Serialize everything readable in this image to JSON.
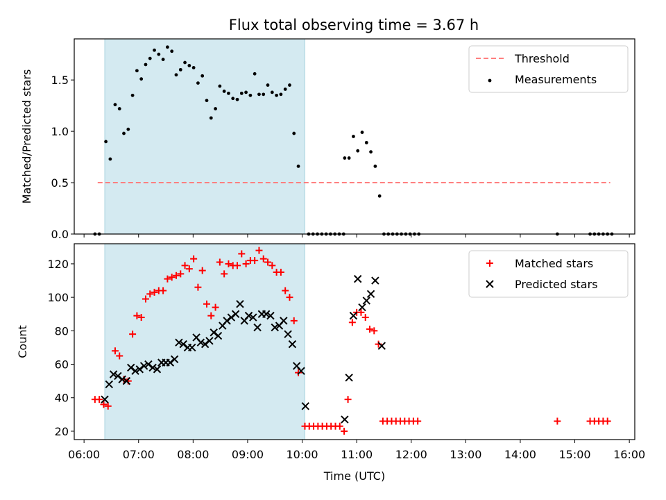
{
  "figure": {
    "title": "Flux total observing time = 3.67 h"
  },
  "chart_data": [
    {
      "type": "scatter",
      "panel": "top",
      "ylabel": "Matched/Predicted stars",
      "ylim": [
        0,
        1.9
      ],
      "yticks": [
        0.0,
        0.5,
        1.0,
        1.5
      ],
      "ytick_labels": [
        "0.0",
        "0.5",
        "1.0",
        "1.5"
      ],
      "xlim": [
        5.82,
        16.1
      ],
      "grid": false,
      "legend_position": "top-right",
      "shaded_interval": {
        "start": 6.38,
        "end": 10.05,
        "color": "#d4eaf1"
      },
      "threshold": {
        "name": "Threshold",
        "value": 0.5,
        "x_start": 6.25,
        "x_end": 15.65,
        "color": "#ff7f7f",
        "style": "dashed"
      },
      "series": [
        {
          "name": "Measurements",
          "marker": "dot",
          "color": "#000000",
          "points": [
            [
              6.2,
              0.0
            ],
            [
              6.28,
              0.0
            ],
            [
              6.4,
              0.9
            ],
            [
              6.48,
              0.73
            ],
            [
              6.57,
              1.26
            ],
            [
              6.65,
              1.22
            ],
            [
              6.73,
              0.98
            ],
            [
              6.81,
              1.02
            ],
            [
              6.89,
              1.35
            ],
            [
              6.97,
              1.59
            ],
            [
              7.05,
              1.51
            ],
            [
              7.13,
              1.65
            ],
            [
              7.21,
              1.71
            ],
            [
              7.29,
              1.79
            ],
            [
              7.37,
              1.75
            ],
            [
              7.45,
              1.7
            ],
            [
              7.53,
              1.82
            ],
            [
              7.61,
              1.78
            ],
            [
              7.69,
              1.55
            ],
            [
              7.77,
              1.6
            ],
            [
              7.85,
              1.67
            ],
            [
              7.93,
              1.64
            ],
            [
              8.01,
              1.62
            ],
            [
              8.09,
              1.47
            ],
            [
              8.17,
              1.54
            ],
            [
              8.25,
              1.3
            ],
            [
              8.33,
              1.13
            ],
            [
              8.41,
              1.22
            ],
            [
              8.49,
              1.44
            ],
            [
              8.57,
              1.39
            ],
            [
              8.65,
              1.37
            ],
            [
              8.73,
              1.32
            ],
            [
              8.81,
              1.31
            ],
            [
              8.89,
              1.37
            ],
            [
              8.97,
              1.38
            ],
            [
              9.05,
              1.35
            ],
            [
              9.13,
              1.56
            ],
            [
              9.21,
              1.36
            ],
            [
              9.29,
              1.36
            ],
            [
              9.37,
              1.45
            ],
            [
              9.45,
              1.38
            ],
            [
              9.53,
              1.35
            ],
            [
              9.61,
              1.36
            ],
            [
              9.69,
              1.41
            ],
            [
              9.77,
              1.45
            ],
            [
              9.85,
              0.98
            ],
            [
              9.93,
              0.66
            ],
            [
              10.12,
              0.0
            ],
            [
              10.2,
              0.0
            ],
            [
              10.28,
              0.0
            ],
            [
              10.36,
              0.0
            ],
            [
              10.44,
              0.0
            ],
            [
              10.52,
              0.0
            ],
            [
              10.6,
              0.0
            ],
            [
              10.68,
              0.0
            ],
            [
              10.76,
              0.0
            ],
            [
              10.78,
              0.74
            ],
            [
              10.86,
              0.74
            ],
            [
              10.94,
              0.95
            ],
            [
              11.02,
              0.81
            ],
            [
              11.1,
              0.99
            ],
            [
              11.18,
              0.89
            ],
            [
              11.26,
              0.8
            ],
            [
              11.34,
              0.66
            ],
            [
              11.42,
              0.37
            ],
            [
              11.5,
              0.0
            ],
            [
              11.58,
              0.0
            ],
            [
              11.66,
              0.0
            ],
            [
              11.74,
              0.0
            ],
            [
              11.82,
              0.0
            ],
            [
              11.9,
              0.0
            ],
            [
              11.98,
              0.0
            ],
            [
              12.06,
              0.0
            ],
            [
              12.14,
              0.0
            ],
            [
              14.68,
              0.0
            ],
            [
              15.28,
              0.0
            ],
            [
              15.36,
              0.0
            ],
            [
              15.44,
              0.0
            ],
            [
              15.52,
              0.0
            ],
            [
              15.6,
              0.0
            ],
            [
              15.68,
              0.0
            ]
          ]
        }
      ],
      "legend": [
        "Threshold",
        "Measurements"
      ]
    },
    {
      "type": "scatter",
      "panel": "bottom",
      "ylabel": "Count",
      "xlabel": "Time (UTC)",
      "ylim": [
        15,
        132
      ],
      "yticks": [
        20,
        40,
        60,
        80,
        100,
        120
      ],
      "ytick_labels": [
        "20",
        "40",
        "60",
        "80",
        "100",
        "120"
      ],
      "xlim": [
        5.82,
        16.1
      ],
      "xticks": [
        6,
        7,
        8,
        9,
        10,
        11,
        12,
        13,
        14,
        15,
        16
      ],
      "xtick_labels": [
        "06:00",
        "07:00",
        "08:00",
        "09:00",
        "10:00",
        "11:00",
        "12:00",
        "13:00",
        "14:00",
        "15:00",
        "16:00"
      ],
      "grid": false,
      "legend_position": "top-right",
      "shaded_interval": {
        "start": 6.38,
        "end": 10.05,
        "color": "#d4eaf1"
      },
      "series": [
        {
          "name": "Matched stars",
          "marker": "plus",
          "color": "#ff0000",
          "points": [
            [
              6.2,
              39
            ],
            [
              6.28,
              39
            ],
            [
              6.36,
              36
            ],
            [
              6.44,
              35
            ],
            [
              6.57,
              68
            ],
            [
              6.65,
              65
            ],
            [
              6.73,
              51
            ],
            [
              6.81,
              50
            ],
            [
              6.89,
              78
            ],
            [
              6.97,
              89
            ],
            [
              7.05,
              88
            ],
            [
              7.13,
              99
            ],
            [
              7.21,
              102
            ],
            [
              7.29,
              103
            ],
            [
              7.37,
              104
            ],
            [
              7.45,
              104
            ],
            [
              7.53,
              111
            ],
            [
              7.61,
              112
            ],
            [
              7.69,
              113
            ],
            [
              7.77,
              114
            ],
            [
              7.85,
              119
            ],
            [
              7.93,
              117
            ],
            [
              8.01,
              123
            ],
            [
              8.09,
              106
            ],
            [
              8.17,
              116
            ],
            [
              8.25,
              96
            ],
            [
              8.33,
              89
            ],
            [
              8.41,
              94
            ],
            [
              8.49,
              121
            ],
            [
              8.57,
              114
            ],
            [
              8.65,
              120
            ],
            [
              8.73,
              119
            ],
            [
              8.81,
              119
            ],
            [
              8.89,
              126
            ],
            [
              8.97,
              120
            ],
            [
              9.05,
              122
            ],
            [
              9.13,
              122
            ],
            [
              9.21,
              128
            ],
            [
              9.29,
              123
            ],
            [
              9.37,
              121
            ],
            [
              9.45,
              119
            ],
            [
              9.53,
              115
            ],
            [
              9.61,
              115
            ],
            [
              9.69,
              104
            ],
            [
              9.77,
              100
            ],
            [
              9.85,
              86
            ],
            [
              9.93,
              55
            ],
            [
              10.05,
              23
            ],
            [
              10.13,
              23
            ],
            [
              10.21,
              23
            ],
            [
              10.29,
              23
            ],
            [
              10.37,
              23
            ],
            [
              10.45,
              23
            ],
            [
              10.53,
              23
            ],
            [
              10.61,
              23
            ],
            [
              10.69,
              23
            ],
            [
              10.77,
              20
            ],
            [
              10.84,
              39
            ],
            [
              10.92,
              85
            ],
            [
              11.0,
              91
            ],
            [
              11.08,
              91
            ],
            [
              11.16,
              88
            ],
            [
              11.24,
              81
            ],
            [
              11.32,
              80
            ],
            [
              11.4,
              72
            ],
            [
              11.48,
              26
            ],
            [
              11.56,
              26
            ],
            [
              11.64,
              26
            ],
            [
              11.72,
              26
            ],
            [
              11.8,
              26
            ],
            [
              11.88,
              26
            ],
            [
              11.96,
              26
            ],
            [
              12.04,
              26
            ],
            [
              12.12,
              26
            ],
            [
              14.68,
              26
            ],
            [
              15.28,
              26
            ],
            [
              15.36,
              26
            ],
            [
              15.44,
              26
            ],
            [
              15.52,
              26
            ],
            [
              15.6,
              26
            ]
          ]
        },
        {
          "name": "Predicted stars",
          "marker": "x",
          "color": "#000000",
          "points": [
            [
              6.38,
              39
            ],
            [
              6.46,
              48
            ],
            [
              6.54,
              54
            ],
            [
              6.62,
              53
            ],
            [
              6.7,
              51
            ],
            [
              6.78,
              50
            ],
            [
              6.86,
              58
            ],
            [
              6.94,
              56
            ],
            [
              7.02,
              57
            ],
            [
              7.1,
              59
            ],
            [
              7.18,
              60
            ],
            [
              7.26,
              58
            ],
            [
              7.34,
              57
            ],
            [
              7.42,
              61
            ],
            [
              7.5,
              61
            ],
            [
              7.58,
              61
            ],
            [
              7.66,
              63
            ],
            [
              7.74,
              73
            ],
            [
              7.82,
              72
            ],
            [
              7.9,
              70
            ],
            [
              7.98,
              70
            ],
            [
              8.06,
              76
            ],
            [
              8.14,
              73
            ],
            [
              8.22,
              72
            ],
            [
              8.3,
              74
            ],
            [
              8.38,
              79
            ],
            [
              8.46,
              77
            ],
            [
              8.54,
              83
            ],
            [
              8.62,
              86
            ],
            [
              8.7,
              88
            ],
            [
              8.78,
              90
            ],
            [
              8.86,
              96
            ],
            [
              8.94,
              86
            ],
            [
              9.02,
              89
            ],
            [
              9.1,
              88
            ],
            [
              9.18,
              82
            ],
            [
              9.26,
              90
            ],
            [
              9.34,
              90
            ],
            [
              9.42,
              89
            ],
            [
              9.5,
              82
            ],
            [
              9.58,
              83
            ],
            [
              9.66,
              86
            ],
            [
              9.74,
              78
            ],
            [
              9.82,
              72
            ],
            [
              9.9,
              59
            ],
            [
              9.98,
              56
            ],
            [
              10.06,
              35
            ],
            [
              10.78,
              27
            ],
            [
              10.86,
              52
            ],
            [
              10.94,
              89
            ],
            [
              11.02,
              111
            ],
            [
              11.1,
              94
            ],
            [
              11.18,
              98
            ],
            [
              11.26,
              102
            ],
            [
              11.34,
              110
            ],
            [
              11.46,
              71
            ]
          ]
        }
      ],
      "legend": [
        "Matched stars",
        "Predicted stars"
      ]
    }
  ]
}
